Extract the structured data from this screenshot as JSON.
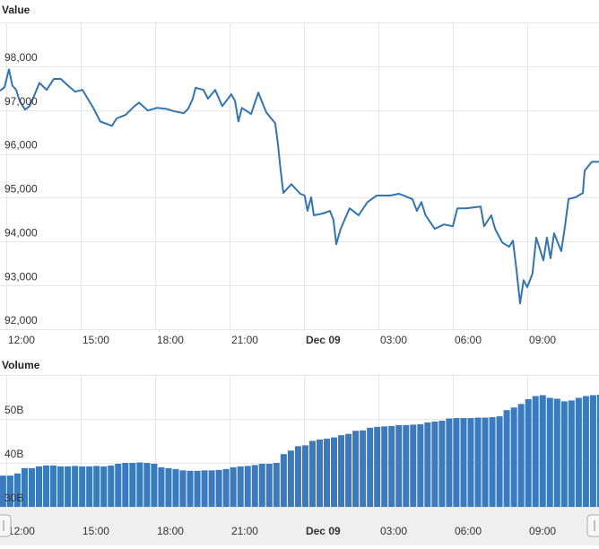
{
  "chart_data": [
    {
      "type": "line",
      "title": "Value",
      "color": "#3474ae",
      "grid": true,
      "xlim": [
        -0.25,
        23.89
      ],
      "xticks": [
        {
          "value": 0,
          "label": "12:00"
        },
        {
          "value": 3,
          "label": "15:00"
        },
        {
          "value": 6,
          "label": "18:00"
        },
        {
          "value": 9,
          "label": "21:00"
        },
        {
          "value": 12,
          "label": "Dec 09"
        },
        {
          "value": 15,
          "label": "03:00"
        },
        {
          "value": 18,
          "label": "06:00"
        },
        {
          "value": 21,
          "label": "09:00"
        }
      ],
      "ylim": [
        92000,
        99000
      ],
      "yticks": [
        {
          "value": 92000,
          "label": "92,000"
        },
        {
          "value": 93000,
          "label": "93,000"
        },
        {
          "value": 94000,
          "label": "94,000"
        },
        {
          "value": 95000,
          "label": "95,000"
        },
        {
          "value": 96000,
          "label": "96,000"
        },
        {
          "value": 97000,
          "label": "97,000"
        },
        {
          "value": 98000,
          "label": "98,000"
        }
      ],
      "x": [
        -0.25,
        -0.07,
        0.11,
        0.25,
        0.4,
        0.54,
        0.76,
        0.94,
        1.12,
        1.34,
        1.63,
        1.92,
        2.2,
        2.49,
        2.78,
        3.07,
        3.36,
        3.51,
        3.79,
        4.26,
        4.45,
        4.81,
        5.17,
        5.35,
        5.71,
        6.07,
        6.43,
        6.79,
        7.16,
        7.34,
        7.52,
        7.63,
        7.95,
        8.13,
        8.42,
        8.71,
        9.07,
        9.22,
        9.36,
        9.5,
        9.87,
        10.16,
        10.48,
        10.84,
        10.95,
        11.06,
        11.17,
        11.49,
        11.85,
        12.03,
        12.14,
        12.29,
        12.4,
        12.76,
        13.05,
        13.19,
        13.3,
        13.48,
        13.84,
        14.2,
        14.56,
        14.93,
        15.47,
        15.83,
        16.37,
        16.55,
        16.73,
        16.9,
        17.27,
        17.64,
        18.0,
        18.18,
        18.54,
        19.12,
        19.26,
        19.55,
        19.7,
        19.99,
        20.27,
        20.42,
        20.56,
        20.71,
        20.85,
        21.0,
        21.21,
        21.36,
        21.65,
        21.79,
        21.94,
        22.08,
        22.37,
        22.52,
        22.66,
        22.95,
        23.24,
        23.31,
        23.6,
        23.89
      ],
      "values": [
        97440,
        97520,
        97930,
        97560,
        97460,
        97210,
        97010,
        97090,
        97320,
        97620,
        97460,
        97710,
        97710,
        97560,
        97420,
        97460,
        97190,
        97050,
        96740,
        96640,
        96810,
        96890,
        97090,
        97170,
        96990,
        97050,
        97030,
        96970,
        96930,
        97030,
        97260,
        97510,
        97460,
        97260,
        97460,
        97090,
        97360,
        97210,
        96740,
        97050,
        96910,
        97400,
        96950,
        96700,
        96230,
        95620,
        95110,
        95310,
        95090,
        95050,
        94700,
        95010,
        94600,
        94640,
        94700,
        94490,
        93940,
        94290,
        94760,
        94600,
        94900,
        95050,
        95050,
        95090,
        94970,
        94700,
        94900,
        94600,
        94290,
        94390,
        94350,
        94760,
        94760,
        94800,
        94350,
        94600,
        94290,
        93980,
        93880,
        94020,
        93370,
        92590,
        93120,
        92960,
        93270,
        94090,
        93570,
        94090,
        93620,
        94190,
        93780,
        94350,
        94970,
        95010,
        95110,
        95620,
        95820,
        95820
      ]
    },
    {
      "type": "bar",
      "title": "Volume",
      "color": "#3a7bbf",
      "grid": true,
      "xlim": [
        -0.25,
        23.89
      ],
      "xticks": [
        {
          "value": 0,
          "label": "12:00"
        },
        {
          "value": 3,
          "label": "15:00"
        },
        {
          "value": 6,
          "label": "18:00"
        },
        {
          "value": 9,
          "label": "21:00"
        },
        {
          "value": 12,
          "label": "Dec 09"
        },
        {
          "value": 15,
          "label": "03:00"
        },
        {
          "value": 18,
          "label": "06:00"
        },
        {
          "value": 21,
          "label": "09:00"
        }
      ],
      "ylim": [
        30,
        60
      ],
      "yticks": [
        {
          "value": 30,
          "label": "30B"
        },
        {
          "value": 40,
          "label": "40B"
        },
        {
          "value": 50,
          "label": "50B"
        }
      ],
      "x": [
        -0.11,
        0.18,
        0.47,
        0.76,
        1.05,
        1.34,
        1.63,
        1.92,
        2.21,
        2.5,
        2.79,
        3.08,
        3.37,
        3.66,
        3.95,
        4.24,
        4.53,
        4.82,
        5.11,
        5.4,
        5.69,
        5.98,
        6.27,
        6.56,
        6.85,
        7.14,
        7.43,
        7.72,
        8.01,
        8.3,
        8.59,
        8.88,
        9.17,
        9.46,
        9.75,
        10.04,
        10.33,
        10.62,
        10.91,
        11.2,
        11.49,
        11.78,
        12.07,
        12.36,
        12.65,
        12.94,
        13.23,
        13.52,
        13.81,
        14.1,
        14.39,
        14.68,
        14.97,
        15.26,
        15.55,
        15.84,
        16.13,
        16.42,
        16.71,
        17.0,
        17.29,
        17.58,
        17.87,
        18.16,
        18.45,
        18.74,
        19.03,
        19.32,
        19.61,
        19.9,
        20.19,
        20.48,
        20.77,
        21.06,
        21.35,
        21.64,
        21.93,
        22.22,
        22.51,
        22.8,
        23.09,
        23.38,
        23.67,
        23.96
      ],
      "values": [
        37.1,
        37.1,
        37.6,
        38.8,
        38.8,
        39.2,
        39.4,
        39.4,
        39.2,
        39.2,
        39.3,
        39.2,
        39.2,
        39.3,
        39.2,
        39.4,
        39.8,
        40.0,
        40.0,
        40.1,
        40.0,
        39.8,
        39.0,
        38.8,
        38.6,
        38.3,
        38.2,
        38.2,
        38.3,
        38.3,
        38.4,
        38.6,
        39.0,
        39.2,
        39.3,
        39.5,
        39.8,
        39.8,
        40.0,
        42.0,
        42.8,
        43.8,
        44.0,
        45.0,
        45.3,
        45.5,
        45.8,
        46.3,
        46.6,
        47.3,
        47.4,
        48.0,
        48.2,
        48.3,
        48.4,
        48.6,
        48.6,
        48.7,
        48.8,
        49.2,
        49.4,
        49.6,
        50.1,
        50.2,
        50.2,
        50.2,
        50.3,
        50.3,
        50.4,
        50.6,
        52.0,
        52.6,
        53.4,
        54.5,
        55.2,
        55.4,
        54.8,
        54.6,
        54.0,
        54.2,
        54.8,
        55.2,
        55.4,
        55.5
      ]
    }
  ]
}
